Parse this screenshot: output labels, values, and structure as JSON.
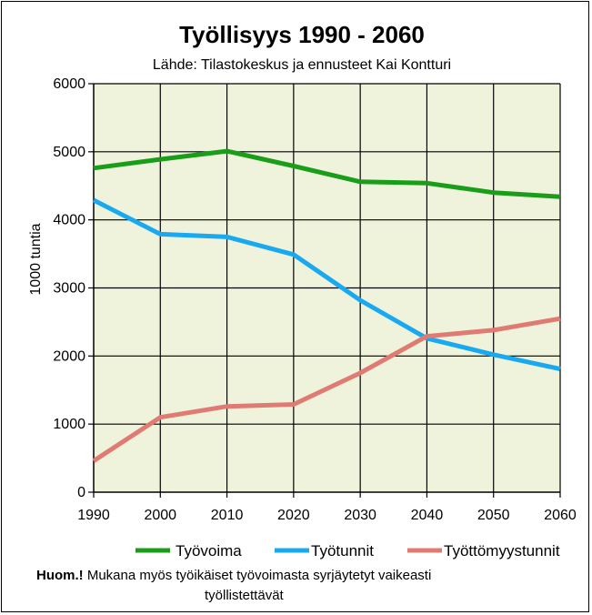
{
  "chart_data": {
    "type": "line",
    "title": "Työllisyys 1990 - 2060",
    "subtitle": "Lähde: Tilastokeskus ja ennusteet Kai Kontturi",
    "ylabel": "1000 tuntia",
    "xlabel": "",
    "x": [
      1990,
      2000,
      2010,
      2020,
      2030,
      2040,
      2050,
      2060
    ],
    "ylim": [
      0,
      6000
    ],
    "yticks": [
      0,
      1000,
      2000,
      3000,
      4000,
      5000,
      6000
    ],
    "grid": true,
    "legend_position": "bottom",
    "series": [
      {
        "name": "Työvoima",
        "color": "#1a9e1a",
        "values": [
          4760,
          4890,
          5010,
          4790,
          4560,
          4540,
          4400,
          4340
        ]
      },
      {
        "name": "Työtunnit",
        "color": "#19a9f0",
        "values": [
          4290,
          3790,
          3750,
          3490,
          2820,
          2260,
          2020,
          1810
        ]
      },
      {
        "name": "Työttömyystunnit",
        "color": "#e07b74",
        "values": [
          460,
          1100,
          1260,
          1290,
          1750,
          2290,
          2380,
          2550
        ]
      }
    ]
  },
  "footnote": {
    "bold": "Huom.!",
    "line1": " Mukana myös työikäiset työvoimasta syrjäytetyt vaikeasti",
    "line2": "työllistettävät"
  }
}
